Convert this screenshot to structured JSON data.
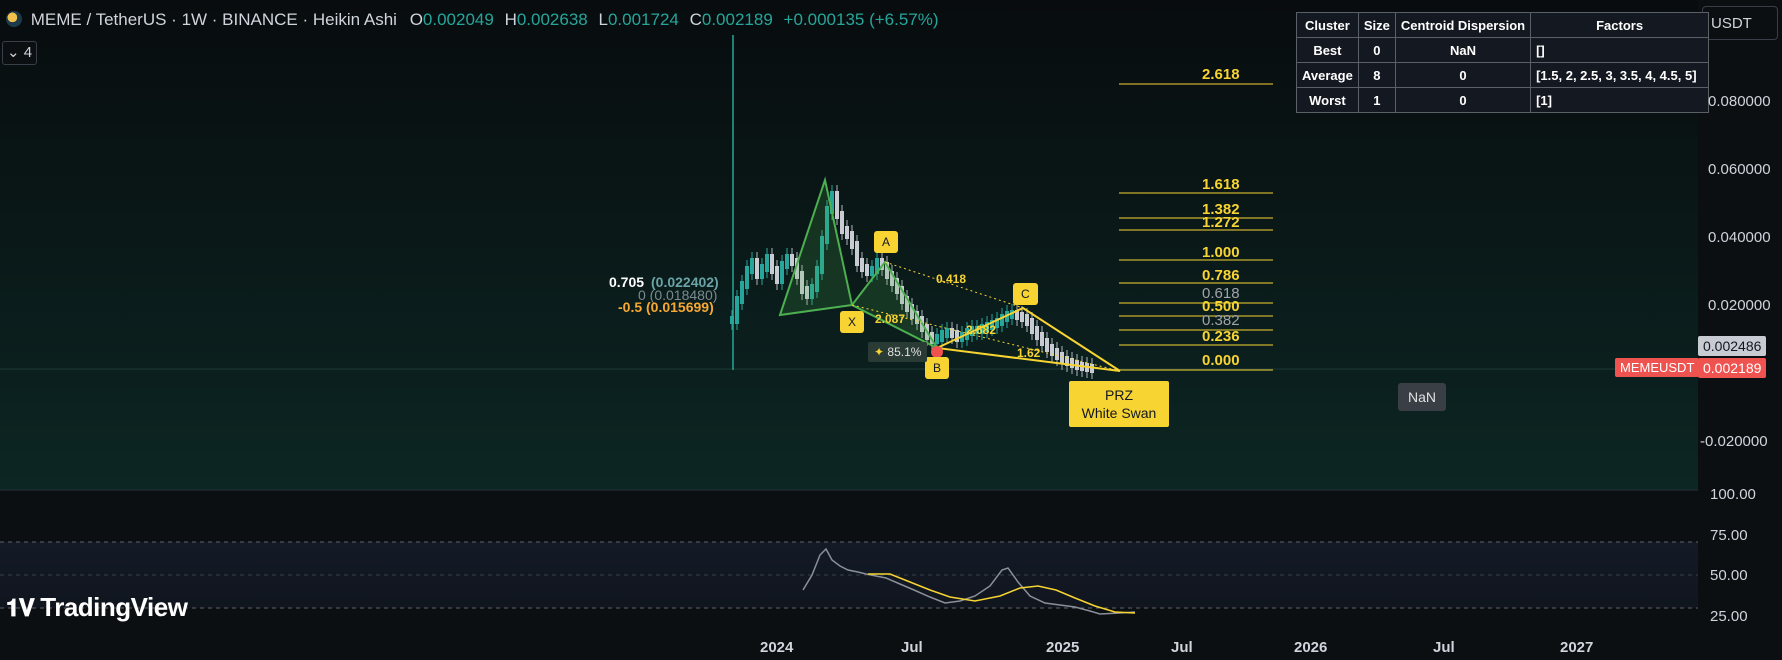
{
  "header": {
    "symbol": "MEME / TetherUS · 1W · BINANCE · Heikin Ashi",
    "o_label": "O",
    "o_value": "0.002049",
    "h_label": "H",
    "h_value": "0.002638",
    "l_label": "L",
    "l_value": "0.001724",
    "c_label": "C",
    "c_value": "0.002189",
    "change": "+0.000135 (+6.57%)"
  },
  "interval_button": "⌄ 4",
  "currency_button": "USDT",
  "cluster_table": {
    "headers": [
      "Cluster",
      "Size",
      "Centroid Dispersion",
      "Factors"
    ],
    "rows": [
      [
        "Best",
        "0",
        "NaN",
        "[]"
      ],
      [
        "Average",
        "8",
        "0",
        "[1.5, 2, 2.5, 3, 3.5, 4, 4.5, 5]"
      ],
      [
        "Worst",
        "1",
        "0",
        "[1]"
      ]
    ]
  },
  "price_axis": {
    "labels": [
      "0.080000",
      "0.060000",
      "0.040000",
      "0.020000",
      "-0.020000"
    ],
    "price_tag": "0.002486",
    "symbol_tag": "MEMEUSDT",
    "symbol_price_tag": "0.002189"
  },
  "time_axis": {
    "labels": [
      "2024",
      "Jul",
      "2025",
      "Jul",
      "2026",
      "Jul",
      "2027"
    ]
  },
  "rsi_axis": {
    "labels": [
      "100.00",
      "75.00",
      "50.00",
      "25.00"
    ]
  },
  "fib_levels": [
    "2.618",
    "1.618",
    "1.382",
    "1.272",
    "1.000",
    "0.786",
    "0.618",
    "0.500",
    "0.382",
    "0.236",
    "0.000"
  ],
  "pattern": {
    "points": {
      "x": "X",
      "a": "A",
      "b": "B",
      "c": "C"
    },
    "ratios": {
      "xab": "2.087",
      "abc": "0.418",
      "bcd": "2.682",
      "xad": "1.62"
    },
    "probability": "85.1%",
    "prz_title": "PRZ",
    "prz_name": "White Swan"
  },
  "left_labels": {
    "l1": "0.705",
    "l2": "(0.022402)",
    "l3": "0 (0.018480)",
    "l4": "-0.5 (0.015699)"
  },
  "nan_label": "NaN",
  "branding": "TradingView",
  "colors": {
    "bull": "#26a69a",
    "bear": "#ef5350",
    "fib": "#f7d432",
    "bg": "#0b0f12",
    "pattern": "#4caf50",
    "rsi": "#8a8f98",
    "rsi_ma": "#f7d432"
  }
}
